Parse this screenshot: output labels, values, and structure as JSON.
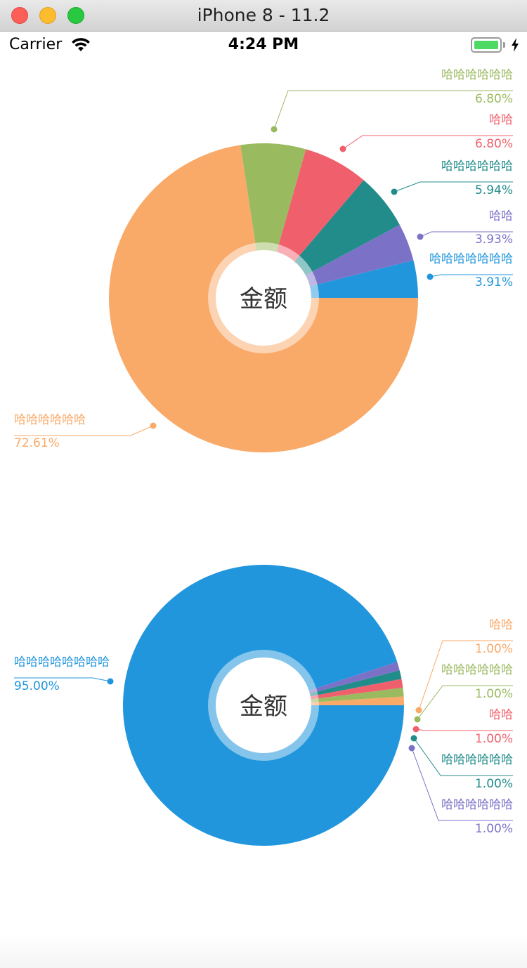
{
  "window": {
    "title": "iPhone 8 - 11.2"
  },
  "status_bar": {
    "carrier": "Carrier",
    "time": "4:24 PM",
    "wifi_icon": "wifi-icon",
    "battery_icon": "battery-icon",
    "charging_icon": "charging-bolt-icon"
  },
  "chart_data": [
    {
      "type": "pie",
      "style": "donut",
      "center_label": "金额",
      "categories": [
        "哈哈哈哈哈哈哈",
        "哈哈",
        "哈哈哈哈哈哈",
        "哈哈",
        "哈哈哈哈哈哈",
        "哈哈哈哈哈哈"
      ],
      "values": [
        3.91,
        3.93,
        5.94,
        6.8,
        6.8,
        72.61
      ],
      "labels": [
        "3.91%",
        "3.93%",
        "5.94%",
        "6.80%",
        "6.80%",
        "72.61%"
      ],
      "colors": [
        "#2196dd",
        "#7b72c8",
        "#218c8a",
        "#f0606c",
        "#9aba60",
        "#f9a968"
      ]
    },
    {
      "type": "pie",
      "style": "donut",
      "center_label": "金额",
      "categories": [
        "哈哈",
        "哈哈哈哈哈哈",
        "哈哈",
        "哈哈哈哈哈哈",
        "哈哈哈哈哈哈",
        "哈哈哈哈哈哈哈哈"
      ],
      "values": [
        1.0,
        1.0,
        1.0,
        1.0,
        1.0,
        95.0
      ],
      "labels": [
        "1.00%",
        "1.00%",
        "1.00%",
        "1.00%",
        "1.00%",
        "95.00%"
      ],
      "colors": [
        "#f9a968",
        "#9aba60",
        "#f0606c",
        "#218c8a",
        "#7b72c8",
        "#2196dd"
      ]
    }
  ]
}
